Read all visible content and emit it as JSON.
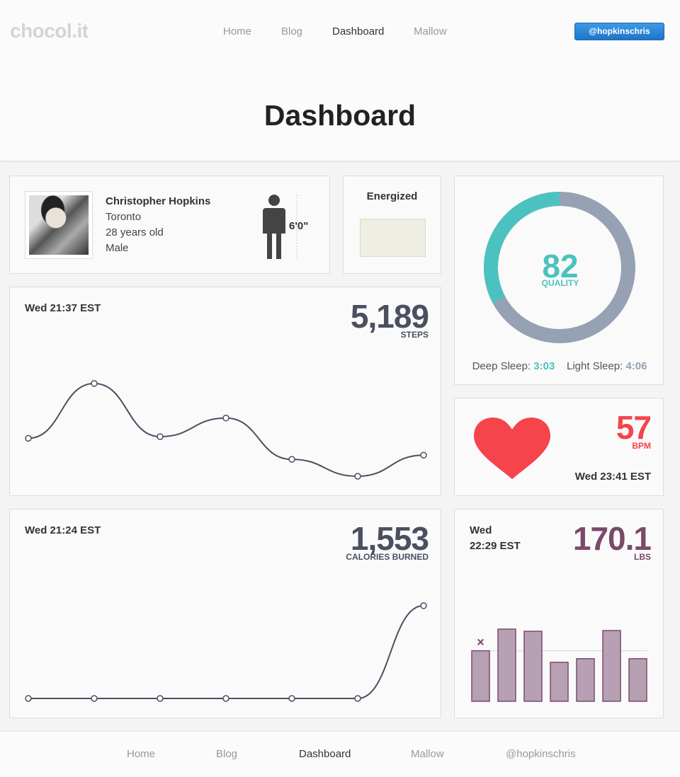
{
  "logo": "chocol.it",
  "nav": {
    "home": "Home",
    "blog": "Blog",
    "dashboard": "Dashboard",
    "mallow": "Mallow"
  },
  "user_handle": "@hopkinschris",
  "page_title": "Dashboard",
  "profile": {
    "name": "Christopher Hopkins",
    "city": "Toronto",
    "age": "28 years old",
    "gender": "Male",
    "height": "6'0\""
  },
  "energy": {
    "label": "Energized",
    "color": "#eeeee2"
  },
  "sleep": {
    "quality_value": "82",
    "quality_label": "QUALITY",
    "quality_percent": 82,
    "deep_label": "Deep Sleep:",
    "deep_value": "3:03",
    "light_label": "Light Sleep:",
    "light_value": "4:06",
    "deep_color": "#4cc2c0",
    "light_color": "#96a1b3"
  },
  "steps": {
    "time": "Wed 21:37 EST",
    "value": "5,189",
    "unit": "STEPS"
  },
  "heart": {
    "value": "57",
    "unit": "BPM",
    "time": "Wed 23:41 EST",
    "color": "#f5444c"
  },
  "calories": {
    "time": "Wed 21:24 EST",
    "value": "1,553",
    "unit": "CALORIES BURNED"
  },
  "weight": {
    "time_day": "Wed",
    "time_clock": "22:29 EST",
    "value": "170.1",
    "unit": "LBS",
    "color": "#7a4a6a",
    "marker": "×"
  },
  "footer": {
    "home": "Home",
    "blog": "Blog",
    "dashboard": "Dashboard",
    "mallow": "Mallow",
    "handle": "@hopkinschris"
  },
  "chart_data": [
    {
      "type": "line",
      "series": [
        {
          "values": [
            0.35,
            1.0,
            0.37,
            0.59,
            0.1,
            -0.1,
            0.15
          ]
        }
      ]
    },
    {
      "type": "line",
      "series": [
        {
          "values": [
            0,
            0,
            0,
            0,
            0,
            0,
            1553
          ]
        }
      ]
    },
    {
      "type": "bar",
      "series": [
        {
          "values": [
            0.7,
            1.0,
            0.97,
            0.54,
            0.59,
            0.98,
            0.59
          ]
        }
      ],
      "reference_line": 0.7
    }
  ]
}
